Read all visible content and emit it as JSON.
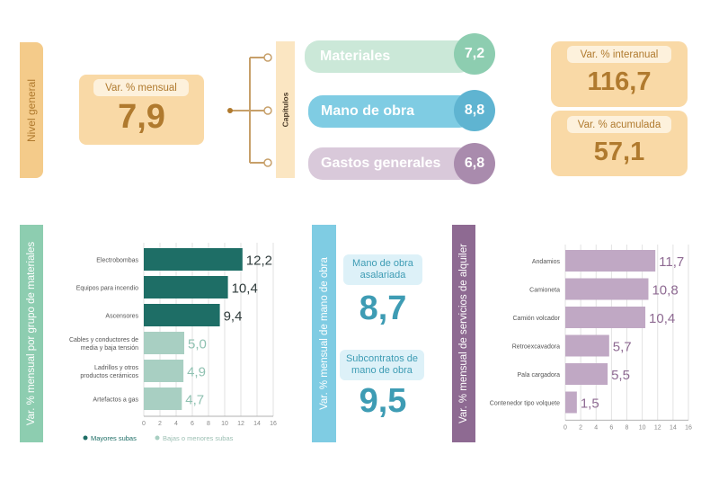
{
  "colors": {
    "orange_dark": "#F4CB8A",
    "orange_light": "#FBE6C2",
    "orange_text": "#B07A2E",
    "green": "#8DCDB0",
    "green_light": "#D6EFE3",
    "green_dark": "#1E6E66",
    "green_pale": "#A8CFC2",
    "blue": "#7FCCE3",
    "blue_light": "#DDF1F8",
    "blue_text": "#3E9CB4",
    "purple": "#8E6A92",
    "purple_light": "#D9C9DA",
    "purple_bar": "#C0A8C4",
    "connector": "#C7A06A"
  },
  "top": {
    "nivel_label": "Nivel general",
    "mensual_label": "Var. % mensual",
    "mensual_value": "7,9",
    "capitulos_label": "Capítulos",
    "chapters": [
      {
        "label": "Materiales",
        "value": "7,2"
      },
      {
        "label": "Mano de obra",
        "value": "8,8"
      },
      {
        "label": "Gastos generales",
        "value": "6,8"
      }
    ],
    "interanual_label": "Var. % interanual",
    "interanual_value": "116,7",
    "acumulada_label": "Var. % acumulada",
    "acumulada_value": "57,1"
  },
  "materials_side_label": "Var. % mensual por grupo de materiales",
  "mano_side_label": "Var. % mensual de mano de obra",
  "mano": {
    "asalariada_label": "Mano de obra asalariada",
    "asalariada_value": "8,7",
    "subcontratos_label": "Subcontratos de mano de obra",
    "subcontratos_value": "9,5"
  },
  "alquiler_side_label": "Var. % mensual de servicios de alquiler",
  "legend": {
    "mayores": "Mayores subas",
    "bajas": "Bajas o menores subas"
  },
  "chart_data": [
    {
      "type": "bar",
      "orientation": "horizontal",
      "categories": [
        "Electrobombas",
        "Equipos para incendio",
        "Ascensores",
        "Cables y conductores de media y baja tensión",
        "Ladrillos y otros productos cerámicos",
        "Artefactos a gas"
      ],
      "category_lines": [
        [
          "Electrobombas"
        ],
        [
          "Equipos para incendio"
        ],
        [
          "Ascensores"
        ],
        [
          "Cables y conductores de",
          "media y baja tensión"
        ],
        [
          "Ladrillos y otros",
          "productos cerámicos"
        ],
        [
          "Artefactos a gas"
        ]
      ],
      "values": [
        12.2,
        10.4,
        9.4,
        5.0,
        4.9,
        4.7
      ],
      "value_labels": [
        "12,2",
        "10,4",
        "9,4",
        "5,0",
        "4,9",
        "4,7"
      ],
      "groups": [
        "mayores",
        "mayores",
        "mayores",
        "bajas",
        "bajas",
        "bajas"
      ],
      "xlim": [
        0,
        16
      ],
      "xticks": [
        0,
        2,
        4,
        6,
        8,
        10,
        12,
        14,
        16
      ],
      "legend": [
        "Mayores subas",
        "Bajas o menores subas"
      ]
    },
    {
      "type": "bar",
      "orientation": "horizontal",
      "categories": [
        "Andamios",
        "Camioneta",
        "Camión volcador",
        "Retroexcavadora",
        "Pala cargadora",
        "Contenedor tipo volquete"
      ],
      "category_lines": [
        [
          "Andamios"
        ],
        [
          "Camioneta"
        ],
        [
          "Camión volcador"
        ],
        [
          "Retroexcavadora"
        ],
        [
          "Pala cargadora"
        ],
        [
          "Contenedor tipo volquete"
        ]
      ],
      "values": [
        11.7,
        10.8,
        10.4,
        5.7,
        5.5,
        1.5
      ],
      "value_labels": [
        "11,7",
        "10,8",
        "10,4",
        "5,7",
        "5,5",
        "1,5"
      ],
      "xlim": [
        0,
        16
      ],
      "xticks": [
        0,
        2,
        4,
        6,
        8,
        10,
        12,
        14,
        16
      ]
    }
  ]
}
